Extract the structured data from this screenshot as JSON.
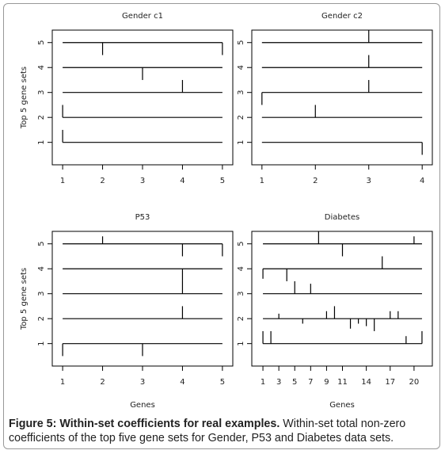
{
  "chart_data": [
    {
      "type": "segment",
      "title": "Gender c1",
      "ylabel": "Top 5 gene sets",
      "xlim": [
        0.74,
        5.26
      ],
      "ylim": [
        0.1,
        5.5
      ],
      "xticks": [
        1,
        2,
        3,
        4,
        5
      ],
      "yticks": [
        1,
        2,
        3,
        4,
        5
      ],
      "color": "#000000",
      "gene_sets": [
        {
          "level": 1,
          "genes": [
            1
          ],
          "values": [
            0.5
          ]
        },
        {
          "level": 2,
          "genes": [
            1
          ],
          "values": [
            0.5
          ]
        },
        {
          "level": 3,
          "genes": [
            4
          ],
          "values": [
            0.5
          ]
        },
        {
          "level": 4,
          "genes": [
            3
          ],
          "values": [
            -0.5
          ]
        },
        {
          "level": 5,
          "genes": [
            2,
            5
          ],
          "values": [
            -0.5,
            -0.5
          ]
        }
      ]
    },
    {
      "type": "segment",
      "title": "Gender c2",
      "xlim": [
        0.81,
        4.19
      ],
      "ylim": [
        0.1,
        5.5
      ],
      "xticks": [
        1,
        2,
        3,
        4
      ],
      "yticks": [
        1,
        2,
        3,
        4,
        5
      ],
      "color": "#000000",
      "gene_sets": [
        {
          "level": 1,
          "genes": [
            4
          ],
          "values": [
            -0.5
          ]
        },
        {
          "level": 2,
          "genes": [
            2
          ],
          "values": [
            0.5
          ]
        },
        {
          "level": 3,
          "genes": [
            1,
            3
          ],
          "values": [
            -0.5,
            0.5
          ]
        },
        {
          "level": 4,
          "genes": [
            3
          ],
          "values": [
            0.5
          ]
        },
        {
          "level": 5,
          "genes": [
            3
          ],
          "values": [
            0.5
          ]
        }
      ]
    },
    {
      "type": "segment",
      "title": "P53",
      "ylabel": "Top 5 gene sets",
      "xlabel": "Genes",
      "xlim": [
        0.74,
        5.26
      ],
      "ylim": [
        0.1,
        5.5
      ],
      "xticks": [
        1,
        2,
        3,
        4,
        5
      ],
      "yticks": [
        1,
        2,
        3,
        4,
        5
      ],
      "color": "#000000",
      "gene_sets": [
        {
          "level": 1,
          "genes": [
            1,
            3
          ],
          "values": [
            -0.5,
            -0.5
          ]
        },
        {
          "level": 2,
          "genes": [
            4
          ],
          "values": [
            0.5
          ]
        },
        {
          "level": 3,
          "genes": [
            4
          ],
          "values": [
            0.5
          ]
        },
        {
          "level": 4,
          "genes": [
            4
          ],
          "values": [
            -0.5
          ]
        },
        {
          "level": 5,
          "genes": [
            2,
            4,
            5
          ],
          "values": [
            0.3,
            -0.5,
            -0.5
          ]
        }
      ]
    },
    {
      "type": "segment",
      "title": "Diabetes",
      "xlabel": "Genes",
      "xlim": [
        -0.4,
        22.3
      ],
      "ylim": [
        0.1,
        5.5
      ],
      "xticks": [
        1,
        3,
        5,
        7,
        9,
        11,
        14,
        17,
        20
      ],
      "yticks": [
        1,
        2,
        3,
        4,
        5
      ],
      "color": "#000000",
      "gene_sets": [
        {
          "level": 1,
          "genes": [
            1,
            2,
            19,
            21
          ],
          "values": [
            0.5,
            0.5,
            0.3,
            0.5
          ]
        },
        {
          "level": 2,
          "genes": [
            3,
            6,
            9,
            10,
            12,
            13,
            14,
            15,
            17,
            18
          ],
          "values": [
            0.2,
            -0.2,
            0.3,
            0.5,
            -0.4,
            -0.2,
            -0.3,
            -0.5,
            0.3,
            0.3
          ]
        },
        {
          "level": 3,
          "genes": [
            5,
            7
          ],
          "values": [
            0.5,
            0.4
          ]
        },
        {
          "level": 4,
          "genes": [
            1,
            4,
            16
          ],
          "values": [
            -0.4,
            -0.5,
            0.5
          ]
        },
        {
          "level": 5,
          "genes": [
            8,
            11,
            20
          ],
          "values": [
            0.5,
            -0.5,
            0.3
          ]
        }
      ]
    }
  ],
  "caption": {
    "label": "Figure 5: Within-set coefficients for real examples.",
    "text": "Within-set total non-zero coefficients of the top five gene sets for Gender, P53 and Diabetes data sets."
  }
}
